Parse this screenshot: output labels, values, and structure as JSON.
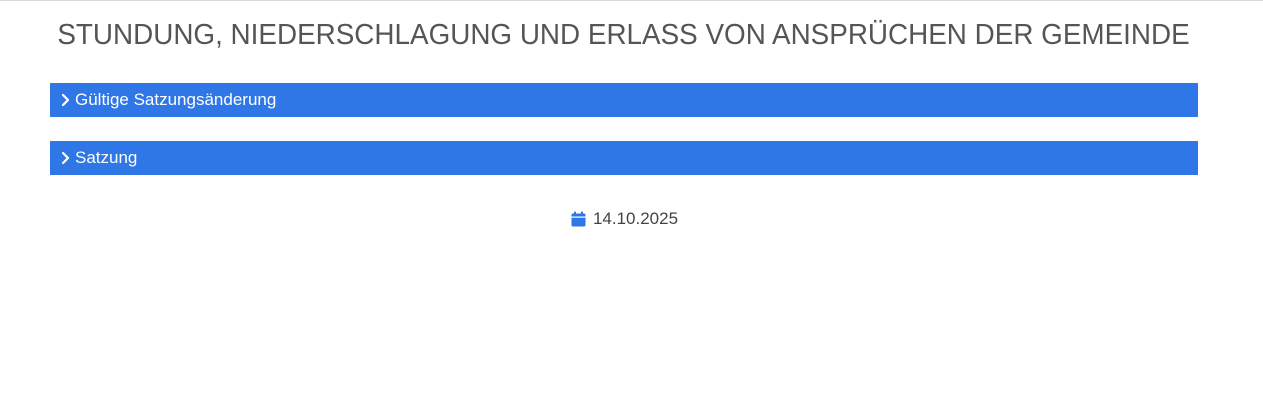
{
  "page": {
    "title": "STUNDUNG, NIEDERSCHLAGUNG UND ERLASS VON ANSPRÜCHEN DER GEMEINDE"
  },
  "accordions": [
    {
      "label": "Gültige Satzungsänderung",
      "icon": "chevron-right-icon"
    },
    {
      "label": "Satzung",
      "icon": "chevron-right-icon"
    }
  ],
  "meta": {
    "date": "14.10.2025",
    "date_icon": "calendar-icon"
  },
  "colors": {
    "accent": "#2f76e6",
    "title_text": "#555555",
    "body_text": "#444444",
    "background": "#ffffff"
  }
}
